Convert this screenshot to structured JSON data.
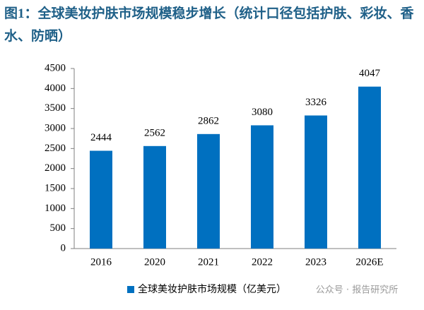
{
  "chart_data": {
    "type": "bar",
    "title": "图1：全球美妆护肤市场规模稳步增长（统计口径包括护肤、彩妆、香水、防晒）",
    "categories": [
      "2016",
      "2020",
      "2021",
      "2022",
      "2023",
      "2026E"
    ],
    "series": [
      {
        "name": "全球美妆护肤市场规模（亿美元）",
        "color": "#0070c0",
        "values": [
          2444,
          2562,
          2862,
          3080,
          3326,
          4047
        ]
      }
    ],
    "ylim": [
      0,
      4500
    ],
    "yticks": [
      0,
      500,
      1000,
      1500,
      2000,
      2500,
      3000,
      3500,
      4000,
      4500
    ],
    "watermark": "公众号 · 报告研究所"
  }
}
